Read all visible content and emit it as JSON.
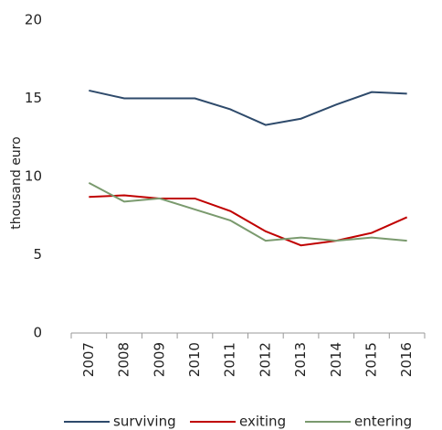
{
  "chart_data": {
    "type": "line",
    "y_label": "thousand euro",
    "categories": [
      "2007",
      "2008",
      "2009",
      "2010",
      "2011",
      "2012",
      "2013",
      "2014",
      "2015",
      "2016"
    ],
    "series": [
      {
        "name": "surviving",
        "color": "#2e4a6b",
        "values": [
          15.5,
          15.0,
          15.0,
          15.0,
          14.3,
          13.3,
          13.7,
          14.6,
          15.4,
          15.3
        ]
      },
      {
        "name": "exiting",
        "color": "#c00000",
        "values": [
          8.7,
          8.8,
          8.6,
          8.6,
          7.8,
          6.5,
          5.6,
          5.9,
          6.4,
          7.4
        ]
      },
      {
        "name": "entering",
        "color": "#7a9a6e",
        "values": [
          9.6,
          8.4,
          8.6,
          7.9,
          7.2,
          5.9,
          6.1,
          5.9,
          6.1,
          5.9
        ]
      }
    ],
    "ylim": [
      0,
      20
    ],
    "yticks": [
      0,
      5,
      10,
      15,
      20
    ],
    "grid": false,
    "legend": "bottom"
  }
}
